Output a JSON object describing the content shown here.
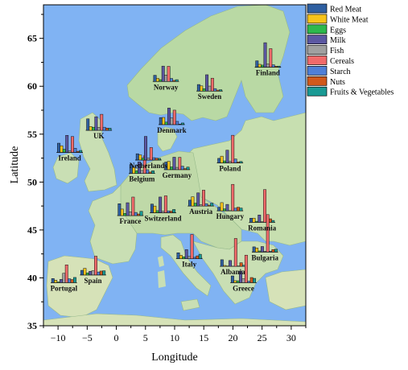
{
  "chart_data": {
    "type": "map-bar",
    "xlabel": "Longitude",
    "ylabel": "Latitude",
    "xlim": [
      -12.5,
      32.5
    ],
    "ylim": [
      35,
      68.5
    ],
    "xticks": [
      -10,
      -5,
      0,
      5,
      10,
      15,
      20,
      25,
      30
    ],
    "xtick_labels": [
      "−10",
      "−5",
      "0",
      "5",
      "10",
      "15",
      "20",
      "25",
      "30"
    ],
    "yticks": [
      35,
      40,
      45,
      50,
      55,
      60,
      65
    ],
    "ytick_labels": [
      "35",
      "40",
      "45",
      "50",
      "55",
      "60",
      "65"
    ],
    "grid": false,
    "legend_position": "top-right",
    "series": [
      {
        "name": "Red Meat",
        "color": "#2e5fa1"
      },
      {
        "name": "White Meat",
        "color": "#f6c31a"
      },
      {
        "name": "Eggs",
        "color": "#2db84d"
      },
      {
        "name": "Milk",
        "color": "#5b57a2"
      },
      {
        "name": "Fish",
        "color": "#a0a0a0"
      },
      {
        "name": "Cereals",
        "color": "#f06a6a"
      },
      {
        "name": "Starch",
        "color": "#4f7fd6"
      },
      {
        "name": "Nuts",
        "color": "#d0591b"
      },
      {
        "name": "Fruits & Vegetables",
        "color": "#1a9a94"
      }
    ],
    "countries": [
      {
        "name": "Portugal",
        "lon": -9,
        "lat": 39.5,
        "values": [
          6.2,
          3.7,
          1.1,
          4.9,
          14.2,
          27.0,
          5.9,
          4.7,
          7.9
        ]
      },
      {
        "name": "Spain",
        "lon": -4,
        "lat": 40.3,
        "values": [
          7.1,
          10.1,
          3.2,
          5.6,
          6.5,
          28.5,
          4.6,
          6.0,
          6.4
        ]
      },
      {
        "name": "Ireland",
        "lon": -8,
        "lat": 53.1,
        "values": [
          13.9,
          10.0,
          4.7,
          25.8,
          2.2,
          24.0,
          6.2,
          1.6,
          2.9
        ]
      },
      {
        "name": "UK",
        "lon": -3,
        "lat": 55.4,
        "values": [
          17.4,
          5.7,
          4.7,
          20.6,
          4.3,
          24.3,
          4.7,
          3.4,
          3.3
        ]
      },
      {
        "name": "France",
        "lon": 2.4,
        "lat": 46.5,
        "values": [
          18.0,
          9.9,
          3.3,
          19.5,
          5.7,
          28.1,
          4.8,
          2.4,
          6.5
        ]
      },
      {
        "name": "Belgium",
        "lon": 4.4,
        "lat": 50.9,
        "values": [
          13.5,
          9.3,
          4.1,
          17.5,
          4.5,
          26.6,
          5.7,
          2.1,
          4.0
        ]
      },
      {
        "name": "Netherlands",
        "lon": 5.5,
        "lat": 52.3,
        "values": [
          9.5,
          7.9,
          3.0,
          35.8,
          2.9,
          19.0,
          3.5,
          2.8,
          2.4
        ]
      },
      {
        "name": "Switzerland",
        "lon": 8,
        "lat": 46.8,
        "values": [
          13.1,
          10.1,
          3.1,
          23.8,
          2.3,
          25.6,
          2.8,
          2.4,
          4.9
        ]
      },
      {
        "name": "Germany",
        "lon": 10.4,
        "lat": 51.3,
        "values": [
          11.4,
          12.5,
          4.1,
          18.8,
          3.4,
          18.6,
          5.2,
          1.5,
          3.8
        ]
      },
      {
        "name": "Denmark",
        "lon": 9.5,
        "lat": 56,
        "values": [
          10.6,
          10.8,
          3.7,
          25.0,
          9.9,
          21.9,
          4.8,
          0.7,
          2.4
        ]
      },
      {
        "name": "Norway",
        "lon": 8.5,
        "lat": 60.5,
        "values": [
          9.4,
          4.7,
          2.7,
          23.3,
          9.7,
          23.0,
          4.6,
          1.6,
          2.7
        ]
      },
      {
        "name": "Sweden",
        "lon": 16,
        "lat": 59.5,
        "values": [
          9.9,
          7.8,
          3.5,
          24.7,
          7.5,
          19.5,
          3.7,
          1.4,
          2.0
        ]
      },
      {
        "name": "Finland",
        "lon": 26,
        "lat": 62,
        "values": [
          9.5,
          4.2,
          3.0,
          37.0,
          4.6,
          28.0,
          3.5,
          1.3,
          1.5
        ]
      },
      {
        "name": "Poland",
        "lon": 19.5,
        "lat": 52,
        "values": [
          6.9,
          10.2,
          3.0,
          19.3,
          2.4,
          41.9,
          5.9,
          1.3,
          2.2
        ]
      },
      {
        "name": "Austria",
        "lon": 14.5,
        "lat": 47.5,
        "values": [
          8.9,
          14.0,
          4.3,
          19.9,
          2.1,
          24.0,
          3.6,
          1.3,
          4.3
        ]
      },
      {
        "name": "Hungary",
        "lon": 19.5,
        "lat": 47,
        "values": [
          5.3,
          12.4,
          2.9,
          9.7,
          0.3,
          40.1,
          4.0,
          5.4,
          4.2
        ]
      },
      {
        "name": "Italy",
        "lon": 12.5,
        "lat": 42,
        "values": [
          9.0,
          5.1,
          2.9,
          13.7,
          3.4,
          36.8,
          2.1,
          4.3,
          6.7
        ]
      },
      {
        "name": "Albania",
        "lon": 20,
        "lat": 41.2,
        "values": [
          10.1,
          1.4,
          0.5,
          8.9,
          0.2,
          42.3,
          0.6,
          5.5,
          1.7
        ]
      },
      {
        "name": "Greece",
        "lon": 21.8,
        "lat": 39.5,
        "values": [
          10.2,
          3.0,
          2.8,
          17.6,
          5.9,
          41.7,
          2.2,
          7.8,
          6.5
        ]
      },
      {
        "name": "Romania",
        "lon": 25,
        "lat": 45.8,
        "values": [
          6.2,
          6.3,
          1.5,
          11.1,
          1.0,
          49.6,
          3.1,
          5.3,
          2.8
        ]
      },
      {
        "name": "Bulgaria",
        "lon": 25.5,
        "lat": 42.7,
        "values": [
          7.8,
          6.0,
          1.6,
          8.3,
          1.2,
          56.7,
          1.1,
          3.7,
          4.2
        ]
      }
    ]
  }
}
